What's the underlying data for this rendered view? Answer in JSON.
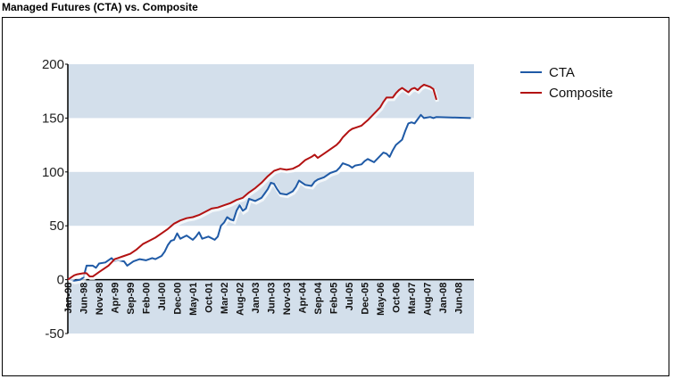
{
  "title": "Managed Futures (CTA) vs. Composite",
  "chart_data": {
    "type": "line",
    "title": "Managed Futures (CTA) vs. Composite",
    "xlabel": "",
    "ylabel": "",
    "ylim": [
      -50,
      200
    ],
    "yticks": [
      "200",
      "150",
      "100",
      "50",
      "0",
      "-50"
    ],
    "ytick_values": [
      200,
      150,
      100,
      50,
      0,
      -50
    ],
    "grid": "alternating horizontal bands",
    "legend_position": "right",
    "band_color": "#d3dfeb",
    "x_tick_labels": [
      "Jan-98",
      "Jun-98",
      "Nov-98",
      "Apr-99",
      "Sep-99",
      "Feb-00",
      "Jul-00",
      "Dec-00",
      "May-01",
      "Oct-01",
      "Mar-02",
      "Aug-02",
      "Jan-03",
      "Jun-03",
      "Nov-03",
      "Apr-04",
      "Sep-04",
      "Feb-05",
      "Jul-05",
      "Dec-05",
      "May-06",
      "Oct-06",
      "Mar-07",
      "Aug-07",
      "Jan-08",
      "Jun-08"
    ],
    "x_start": "Jan-98",
    "x_end": "Oct-08",
    "series": [
      {
        "name": "CTA",
        "color": "#1f5aa6",
        "points": [
          [
            0,
            1
          ],
          [
            2,
            -1
          ],
          [
            4,
            0
          ],
          [
            5,
            2
          ],
          [
            6,
            13
          ],
          [
            8,
            13
          ],
          [
            9,
            11
          ],
          [
            10,
            15
          ],
          [
            12,
            16
          ],
          [
            14,
            20
          ],
          [
            15,
            17
          ],
          [
            16,
            18
          ],
          [
            18,
            17
          ],
          [
            19,
            13
          ],
          [
            21,
            17
          ],
          [
            23,
            19
          ],
          [
            25,
            18
          ],
          [
            27,
            20
          ],
          [
            28,
            19
          ],
          [
            30,
            22
          ],
          [
            31,
            26
          ],
          [
            32,
            32
          ],
          [
            33,
            36
          ],
          [
            34,
            37
          ],
          [
            35,
            43
          ],
          [
            36,
            38
          ],
          [
            38,
            41
          ],
          [
            40,
            37
          ],
          [
            41,
            40
          ],
          [
            42,
            44
          ],
          [
            43,
            38
          ],
          [
            45,
            40
          ],
          [
            47,
            37
          ],
          [
            48,
            40
          ],
          [
            49,
            50
          ],
          [
            50,
            53
          ],
          [
            51,
            58
          ],
          [
            52,
            56
          ],
          [
            53,
            55
          ],
          [
            54,
            64
          ],
          [
            55,
            69
          ],
          [
            56,
            64
          ],
          [
            57,
            66
          ],
          [
            58,
            75
          ],
          [
            60,
            73
          ],
          [
            62,
            76
          ],
          [
            63,
            80
          ],
          [
            64,
            84
          ],
          [
            65,
            90
          ],
          [
            66,
            89
          ],
          [
            67,
            84
          ],
          [
            68,
            80
          ],
          [
            70,
            79
          ],
          [
            72,
            82
          ],
          [
            73,
            86
          ],
          [
            74,
            92
          ],
          [
            75,
            90
          ],
          [
            76,
            88
          ],
          [
            78,
            87
          ],
          [
            79,
            91
          ],
          [
            80,
            93
          ],
          [
            82,
            95
          ],
          [
            84,
            99
          ],
          [
            86,
            101
          ],
          [
            87,
            104
          ],
          [
            88,
            108
          ],
          [
            90,
            106
          ],
          [
            91,
            104
          ],
          [
            92,
            106
          ],
          [
            94,
            107
          ],
          [
            95,
            110
          ],
          [
            96,
            112
          ],
          [
            98,
            109
          ],
          [
            99,
            112
          ],
          [
            100,
            115
          ],
          [
            101,
            118
          ],
          [
            102,
            117
          ],
          [
            103,
            114
          ],
          [
            104,
            120
          ],
          [
            105,
            125
          ],
          [
            107,
            130
          ],
          [
            108,
            138
          ],
          [
            109,
            145
          ],
          [
            110,
            146
          ],
          [
            111,
            145
          ],
          [
            112,
            149
          ],
          [
            113,
            153
          ],
          [
            114,
            150
          ],
          [
            116,
            151
          ],
          [
            117,
            150
          ],
          [
            118,
            151
          ],
          [
            129,
            150
          ]
        ]
      },
      {
        "name": "Composite",
        "color": "#b31212",
        "points": [
          [
            0,
            0
          ],
          [
            2,
            4
          ],
          [
            3,
            5
          ],
          [
            5,
            6
          ],
          [
            6,
            6
          ],
          [
            7,
            3
          ],
          [
            8,
            3
          ],
          [
            9,
            5
          ],
          [
            10,
            7
          ],
          [
            11,
            9
          ],
          [
            12,
            11
          ],
          [
            13,
            13
          ],
          [
            14,
            16
          ],
          [
            15,
            19
          ],
          [
            16,
            20
          ],
          [
            18,
            22
          ],
          [
            20,
            24
          ],
          [
            22,
            28
          ],
          [
            24,
            33
          ],
          [
            26,
            36
          ],
          [
            28,
            39
          ],
          [
            30,
            43
          ],
          [
            32,
            47
          ],
          [
            34,
            52
          ],
          [
            36,
            55
          ],
          [
            38,
            57
          ],
          [
            40,
            58
          ],
          [
            42,
            60
          ],
          [
            44,
            63
          ],
          [
            46,
            66
          ],
          [
            48,
            67
          ],
          [
            50,
            69
          ],
          [
            52,
            71
          ],
          [
            54,
            74
          ],
          [
            56,
            76
          ],
          [
            58,
            81
          ],
          [
            60,
            85
          ],
          [
            62,
            90
          ],
          [
            64,
            96
          ],
          [
            66,
            101
          ],
          [
            68,
            103
          ],
          [
            70,
            102
          ],
          [
            72,
            103
          ],
          [
            74,
            106
          ],
          [
            76,
            111
          ],
          [
            78,
            114
          ],
          [
            79,
            116
          ],
          [
            80,
            113
          ],
          [
            82,
            117
          ],
          [
            84,
            121
          ],
          [
            86,
            125
          ],
          [
            87,
            128
          ],
          [
            88,
            132
          ],
          [
            89,
            135
          ],
          [
            90,
            138
          ],
          [
            91,
            140
          ],
          [
            92,
            141
          ],
          [
            94,
            143
          ],
          [
            96,
            148
          ],
          [
            98,
            154
          ],
          [
            100,
            160
          ],
          [
            101,
            165
          ],
          [
            102,
            169
          ],
          [
            104,
            169
          ],
          [
            105,
            173
          ],
          [
            106,
            176
          ],
          [
            107,
            178
          ],
          [
            108,
            176
          ],
          [
            109,
            174
          ],
          [
            110,
            177
          ],
          [
            111,
            178
          ],
          [
            112,
            176
          ],
          [
            113,
            179
          ],
          [
            114,
            181
          ],
          [
            115,
            180
          ],
          [
            116,
            179
          ],
          [
            117,
            177
          ],
          [
            118,
            167
          ]
        ]
      }
    ],
    "x_total_months": 130
  }
}
